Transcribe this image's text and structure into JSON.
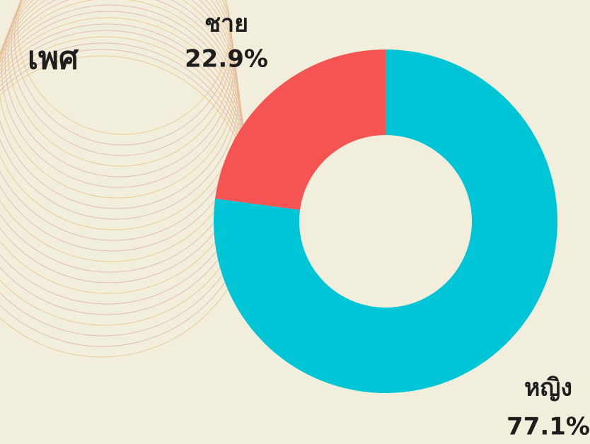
{
  "chart_data": {
    "type": "pie",
    "donut": true,
    "title": "เพศ",
    "categories": [
      "ชาย",
      "หญิง"
    ],
    "values": [
      22.9,
      77.1
    ],
    "value_labels": [
      "22.9%",
      "77.1%"
    ],
    "colors": [
      "#f45452",
      "#00c5d6"
    ]
  }
}
